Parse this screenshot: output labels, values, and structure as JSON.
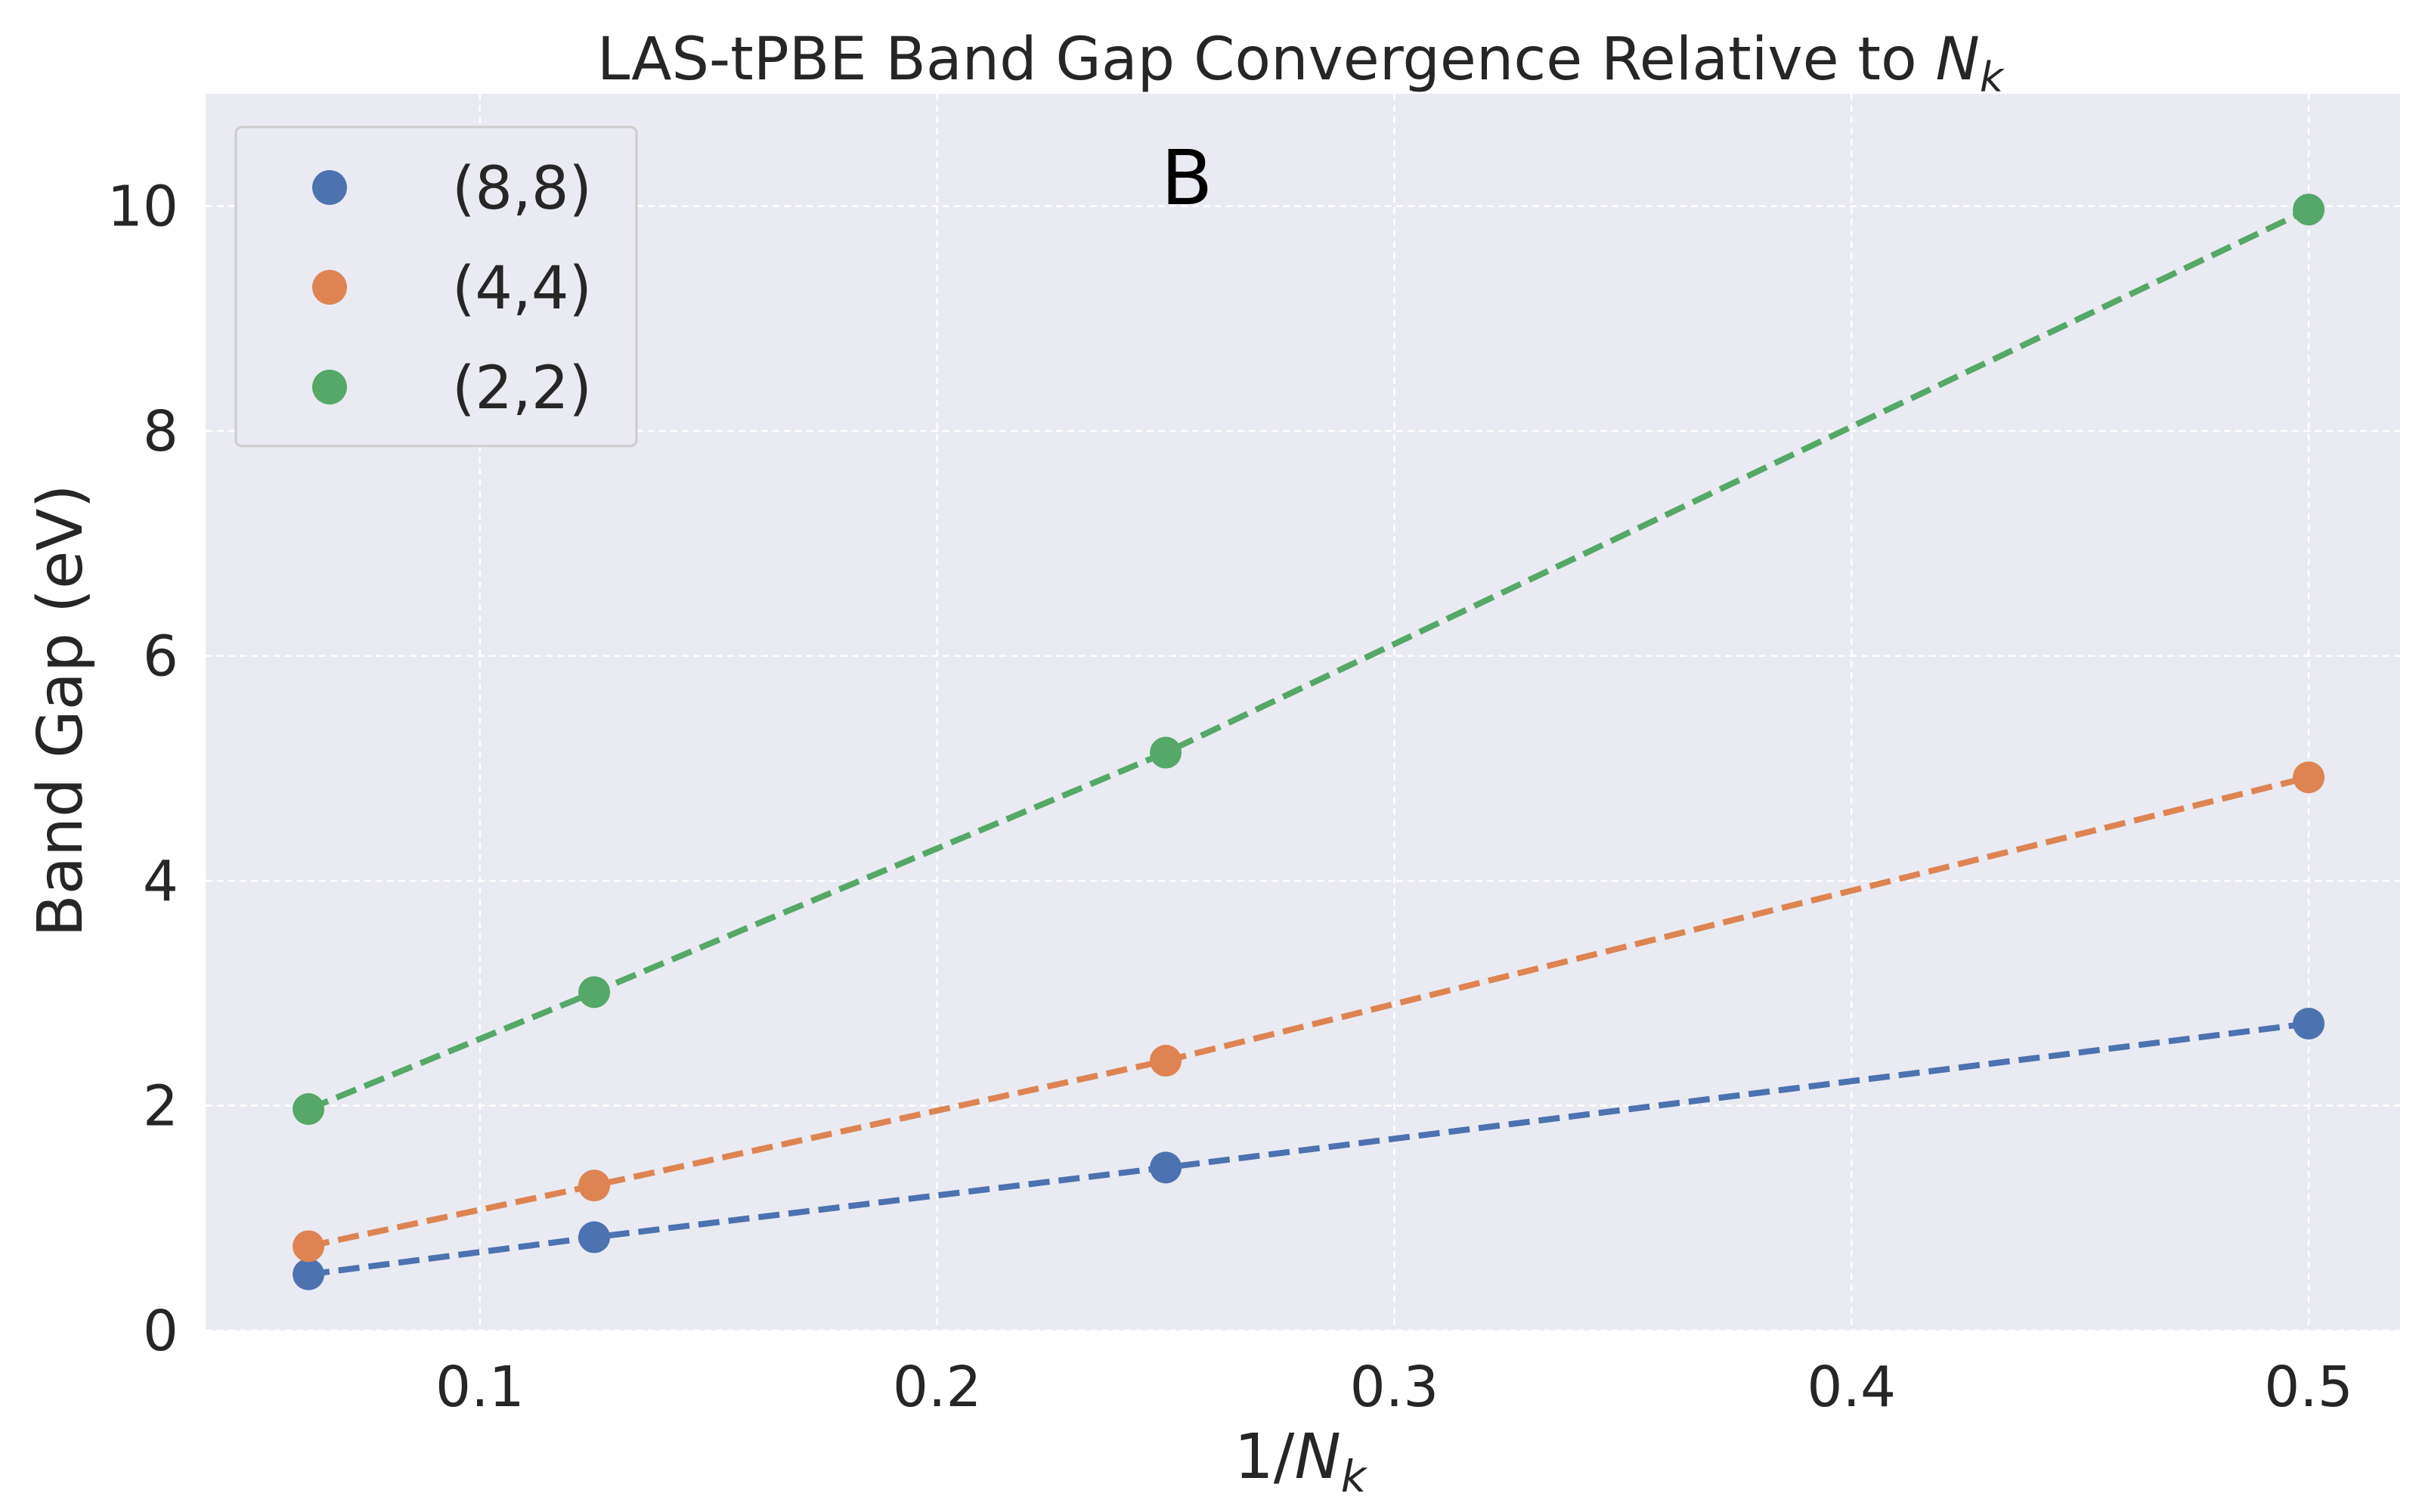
{
  "chart_data": {
    "type": "line",
    "title": "LAS-tPBE Band Gap Convergence Relative to ",
    "title_math": "N",
    "title_math_sub": "k",
    "xlabel": "1/",
    "xlabel_math": "N",
    "xlabel_math_sub": "k",
    "ylabel": "Band Gap (eV)",
    "annotation": "B",
    "xlim": [
      0.04,
      0.52
    ],
    "ylim": [
      0,
      11
    ],
    "x_ticks": [
      0.1,
      0.2,
      0.3,
      0.4,
      0.5
    ],
    "x_tick_labels": [
      "0.1",
      "0.2",
      "0.3",
      "0.4",
      "0.5"
    ],
    "y_ticks": [
      0,
      2,
      4,
      6,
      8,
      10
    ],
    "y_tick_labels": [
      "0",
      "2",
      "4",
      "6",
      "8",
      "10"
    ],
    "grid": true,
    "line_style": "dashed",
    "legend_position": "upper-left",
    "background": "#eaeaf2",
    "grid_color": "#ffffff",
    "x": [
      0.0625,
      0.125,
      0.25,
      0.5
    ],
    "series": [
      {
        "name": "(8,8)",
        "color": "#4c72b0",
        "values": [
          0.5,
          0.83,
          1.45,
          2.73
        ]
      },
      {
        "name": "(4,4)",
        "color": "#dd8452",
        "values": [
          0.75,
          1.29,
          2.4,
          4.92
        ]
      },
      {
        "name": "(2,2)",
        "color": "#55a868",
        "values": [
          1.97,
          3.01,
          5.14,
          9.97
        ]
      }
    ]
  }
}
